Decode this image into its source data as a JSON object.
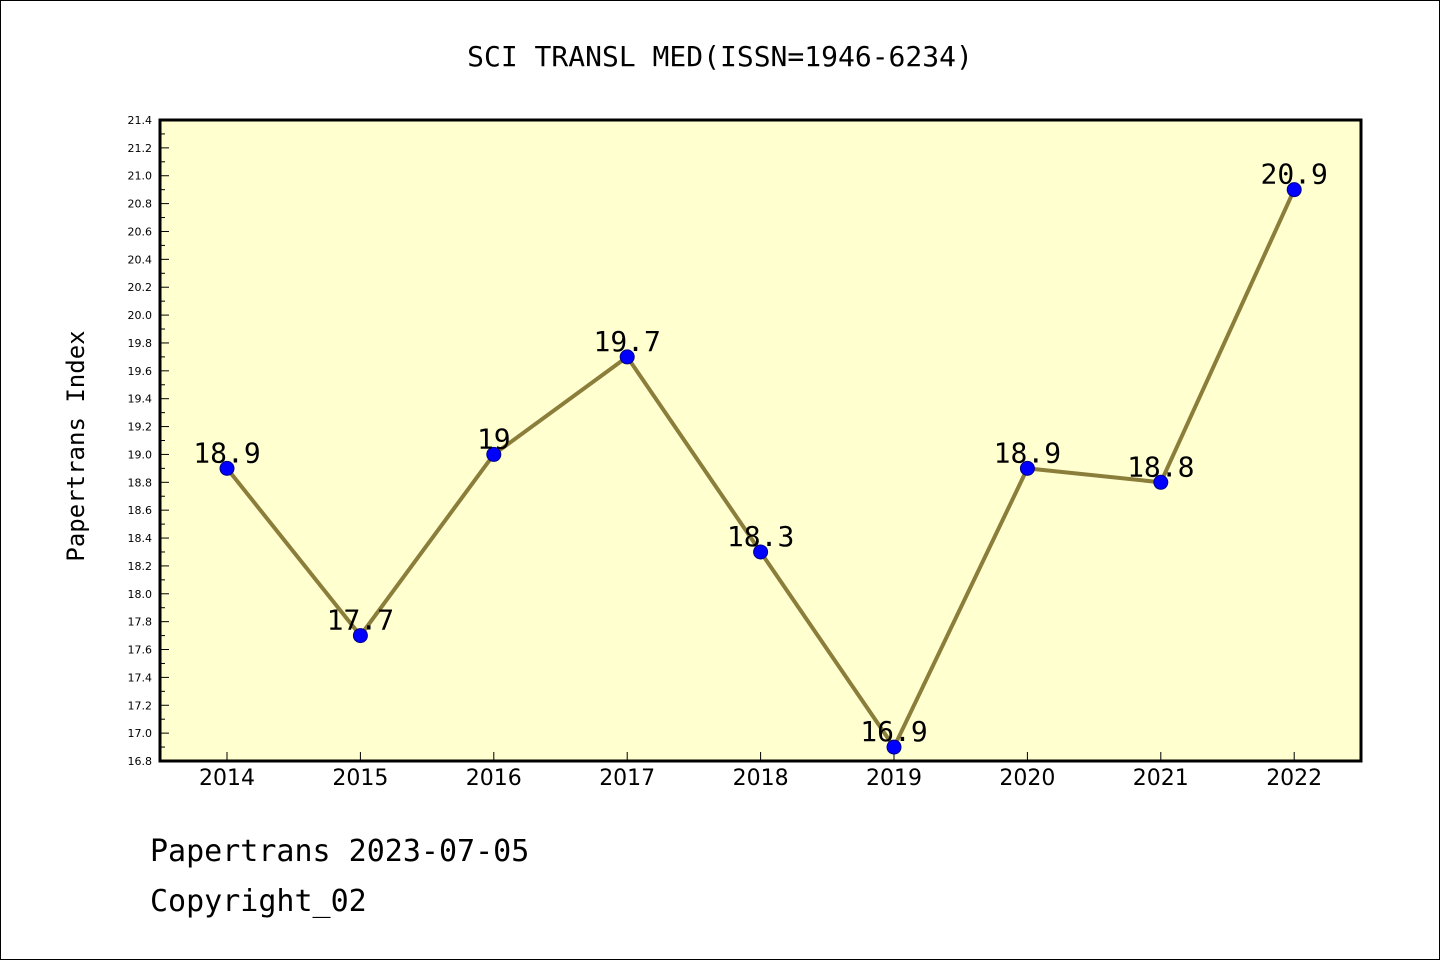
{
  "chart_data": {
    "type": "line",
    "title": "SCI TRANSL MED(ISSN=1946-6234)",
    "ylabel": "Papertrans Index",
    "xlabel": "",
    "categories": [
      "2014",
      "2015",
      "2016",
      "2017",
      "2018",
      "2019",
      "2020",
      "2021",
      "2022"
    ],
    "values": [
      18.9,
      17.7,
      19.0,
      19.7,
      18.3,
      16.9,
      18.9,
      18.8,
      20.9
    ],
    "data_labels": [
      "18.9",
      "17.7",
      "19",
      "19.7",
      "18.3",
      "16.9",
      "18.9",
      "18.8",
      "20.9"
    ],
    "ylim": [
      16.8,
      21.4
    ],
    "y_tick_step": 0.2,
    "y_minor_tick_step": 0.1,
    "grid": false,
    "legend": "none",
    "colors": {
      "plot_background": "#ffffd0",
      "line": "#8b7d3a",
      "marker_fill": "#0000ff",
      "marker_stroke": "#00008b",
      "axis": "#000000"
    }
  },
  "footer": {
    "line1": "Papertrans 2023-07-05",
    "line2": "Copyright_02"
  }
}
